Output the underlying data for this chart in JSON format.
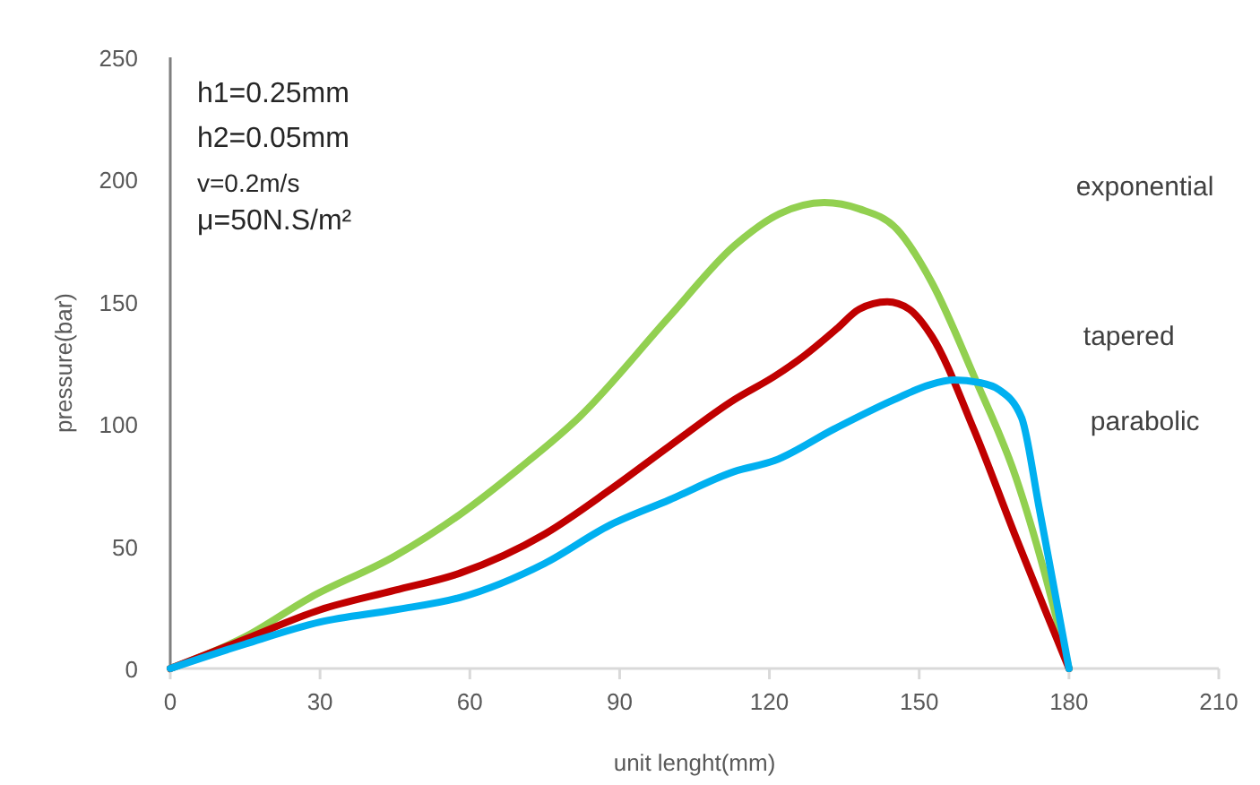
{
  "chart_data": {
    "type": "line",
    "xlabel": "unit lenght(mm)",
    "ylabel": "pressure(bar)",
    "xlim": [
      0,
      210
    ],
    "xticks": [
      0,
      30,
      60,
      90,
      120,
      150,
      180,
      210
    ],
    "ylim": [
      0,
      250
    ],
    "yticks": [
      0,
      50,
      100,
      150,
      200,
      250
    ],
    "grid": false,
    "legend": false,
    "marker": "none",
    "line_style": "solid",
    "annotations": [
      "h1=0.25mm",
      "h2=0.05mm",
      "v=0.2m/s",
      "μ=50N.S/m²"
    ],
    "series": [
      {
        "name": "exponential",
        "color": "#92d050",
        "x": [
          0,
          15,
          28,
          45,
          58,
          70,
          82,
          100,
          113,
          122,
          131,
          138,
          145.4,
          152.5,
          161,
          169.4,
          175,
          180
        ],
        "values": [
          0,
          13,
          29,
          46,
          63,
          82,
          103,
          144,
          173,
          186,
          190.6,
          188,
          180,
          158,
          119.5,
          78,
          40,
          0
        ]
      },
      {
        "name": "tapered",
        "color": "#c00000",
        "x": [
          0,
          15,
          30,
          45,
          58,
          75,
          88,
          100,
          113,
          121,
          127,
          133.5,
          138,
          143.6,
          148,
          152.5,
          161,
          169.4,
          175,
          180
        ],
        "values": [
          0,
          12,
          24,
          32,
          39,
          55,
          73,
          91,
          110,
          119.5,
          128,
          139,
          147,
          150,
          147,
          136,
          97.5,
          53.5,
          25,
          0
        ]
      },
      {
        "name": "parabolic",
        "color": "#00b0f0",
        "x": [
          0,
          15,
          30,
          45,
          58,
          75,
          88,
          100,
          113,
          121,
          133,
          145,
          152,
          157,
          162,
          166,
          170.5,
          174,
          177,
          180
        ],
        "values": [
          0,
          10,
          19,
          24,
          29,
          43,
          58.6,
          69,
          80.6,
          85,
          98,
          110,
          116,
          118,
          117,
          114,
          102.6,
          66,
          33,
          0
        ]
      }
    ]
  }
}
